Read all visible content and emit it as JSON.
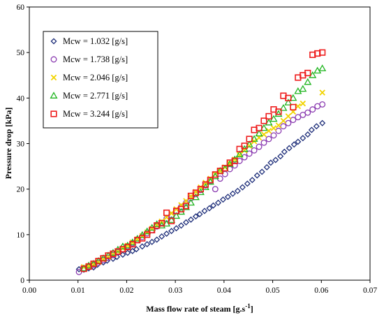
{
  "chart_data": {
    "type": "scatter",
    "title": "",
    "xlabel": "Mass flow rate of steam [g.s",
    "xlabel_sup": "-1",
    "xlabel_end": "]",
    "ylabel": "Pressure drop [kPa]",
    "xlim": [
      0,
      0.07
    ],
    "ylim": [
      0,
      60
    ],
    "x_ticks": [
      "0.00",
      "0.01",
      "0.02",
      "0.03",
      "0.04",
      "0.05",
      "0.06",
      "0.07"
    ],
    "y_ticks": [
      "0",
      "10",
      "20",
      "30",
      "40",
      "50",
      "60"
    ],
    "grid": false,
    "legend_position": "top-left",
    "series": [
      {
        "name": "Mcw = 1.032 [g/s]",
        "marker": "diamond",
        "color": "#1f2f7a",
        "points": [
          [
            0.0102,
            2.4
          ],
          [
            0.0112,
            2.3
          ],
          [
            0.0122,
            2.6
          ],
          [
            0.0132,
            2.8
          ],
          [
            0.014,
            3.4
          ],
          [
            0.0152,
            3.9
          ],
          [
            0.016,
            4.3
          ],
          [
            0.0172,
            4.7
          ],
          [
            0.018,
            5.1
          ],
          [
            0.0192,
            5.6
          ],
          [
            0.0202,
            6.0
          ],
          [
            0.0212,
            6.4
          ],
          [
            0.022,
            6.8
          ],
          [
            0.0232,
            7.4
          ],
          [
            0.0242,
            7.9
          ],
          [
            0.0252,
            8.4
          ],
          [
            0.0262,
            8.9
          ],
          [
            0.0272,
            9.6
          ],
          [
            0.0282,
            10.2
          ],
          [
            0.0292,
            10.8
          ],
          [
            0.0302,
            11.4
          ],
          [
            0.0312,
            12.0
          ],
          [
            0.0322,
            12.7
          ],
          [
            0.0332,
            13.3
          ],
          [
            0.0342,
            14.0
          ],
          [
            0.035,
            14.5
          ],
          [
            0.036,
            15.2
          ],
          [
            0.037,
            15.8
          ],
          [
            0.0378,
            16.4
          ],
          [
            0.0388,
            17.0
          ],
          [
            0.0398,
            17.7
          ],
          [
            0.0408,
            18.3
          ],
          [
            0.0418,
            19.0
          ],
          [
            0.0428,
            19.6
          ],
          [
            0.0438,
            20.4
          ],
          [
            0.0448,
            21.2
          ],
          [
            0.0458,
            22.0
          ],
          [
            0.0468,
            23.0
          ],
          [
            0.0478,
            23.8
          ],
          [
            0.0488,
            24.8
          ],
          [
            0.0496,
            25.8
          ],
          [
            0.0506,
            26.4
          ],
          [
            0.0516,
            27.2
          ],
          [
            0.0524,
            28.2
          ],
          [
            0.0534,
            29.0
          ],
          [
            0.0544,
            29.8
          ],
          [
            0.0552,
            30.4
          ],
          [
            0.0562,
            31.2
          ],
          [
            0.0572,
            32.0
          ],
          [
            0.058,
            33.0
          ],
          [
            0.059,
            33.8
          ],
          [
            0.0602,
            34.5
          ]
        ]
      },
      {
        "name": "Mcw = 1.738 [g/s]",
        "marker": "circle",
        "color": "#8a3ab0",
        "points": [
          [
            0.0102,
            1.8
          ],
          [
            0.0112,
            2.5
          ],
          [
            0.0122,
            2.9
          ],
          [
            0.0132,
            3.3
          ],
          [
            0.0142,
            3.8
          ],
          [
            0.0152,
            4.4
          ],
          [
            0.0162,
            4.9
          ],
          [
            0.0172,
            5.5
          ],
          [
            0.0182,
            6.1
          ],
          [
            0.0192,
            6.8
          ],
          [
            0.0202,
            7.4
          ],
          [
            0.0212,
            8.1
          ],
          [
            0.0222,
            8.8
          ],
          [
            0.0232,
            9.5
          ],
          [
            0.0242,
            10.3
          ],
          [
            0.0252,
            11.0
          ],
          [
            0.0262,
            11.8
          ],
          [
            0.0272,
            12.6
          ],
          [
            0.0282,
            13.5
          ],
          [
            0.0292,
            14.3
          ],
          [
            0.0302,
            15.2
          ],
          [
            0.0312,
            16.1
          ],
          [
            0.0322,
            17.0
          ],
          [
            0.0332,
            18.0
          ],
          [
            0.0342,
            18.9
          ],
          [
            0.0352,
            19.8
          ],
          [
            0.0362,
            20.8
          ],
          [
            0.0372,
            21.8
          ],
          [
            0.0382,
            20.0
          ],
          [
            0.0392,
            22.3
          ],
          [
            0.0402,
            23.3
          ],
          [
            0.0412,
            24.4
          ],
          [
            0.0422,
            25.2
          ],
          [
            0.0432,
            26.2
          ],
          [
            0.0442,
            27.0
          ],
          [
            0.0452,
            27.8
          ],
          [
            0.0462,
            28.5
          ],
          [
            0.0472,
            29.3
          ],
          [
            0.0482,
            30.2
          ],
          [
            0.0492,
            31.0
          ],
          [
            0.0502,
            31.8
          ],
          [
            0.0512,
            32.8
          ],
          [
            0.0522,
            33.8
          ],
          [
            0.0532,
            34.5
          ],
          [
            0.0542,
            35.2
          ],
          [
            0.0552,
            35.8
          ],
          [
            0.0562,
            36.3
          ],
          [
            0.0572,
            36.8
          ],
          [
            0.0582,
            37.5
          ],
          [
            0.0592,
            38.2
          ],
          [
            0.0602,
            38.6
          ]
        ]
      },
      {
        "name": "Mcw = 2.046 [g/s]",
        "marker": "cross",
        "color": "#f2d400",
        "points": [
          [
            0.0112,
            2.9
          ],
          [
            0.0122,
            3.1
          ],
          [
            0.0132,
            3.5
          ],
          [
            0.0142,
            4.0
          ],
          [
            0.0152,
            4.6
          ],
          [
            0.0162,
            5.1
          ],
          [
            0.0172,
            5.7
          ],
          [
            0.0182,
            6.3
          ],
          [
            0.0192,
            7.0
          ],
          [
            0.0202,
            7.6
          ],
          [
            0.0212,
            8.3
          ],
          [
            0.0222,
            9.0
          ],
          [
            0.0232,
            9.7
          ],
          [
            0.0242,
            10.5
          ],
          [
            0.0252,
            11.3
          ],
          [
            0.0262,
            12.1
          ],
          [
            0.0272,
            12.9
          ],
          [
            0.0282,
            13.8
          ],
          [
            0.0292,
            14.7
          ],
          [
            0.0302,
            15.6
          ],
          [
            0.0312,
            16.5
          ],
          [
            0.0322,
            17.4
          ],
          [
            0.0332,
            18.4
          ],
          [
            0.0342,
            19.4
          ],
          [
            0.0352,
            20.4
          ],
          [
            0.0362,
            21.4
          ],
          [
            0.0372,
            22.3
          ],
          [
            0.0382,
            23.3
          ],
          [
            0.0392,
            24.0
          ],
          [
            0.0402,
            24.8
          ],
          [
            0.0412,
            25.6
          ],
          [
            0.0422,
            26.5
          ],
          [
            0.0432,
            27.5
          ],
          [
            0.0442,
            28.5
          ],
          [
            0.0452,
            29.5
          ],
          [
            0.0462,
            30.5
          ],
          [
            0.0472,
            31.3
          ],
          [
            0.0482,
            32.0
          ],
          [
            0.0492,
            32.8
          ],
          [
            0.0502,
            33.4
          ],
          [
            0.0512,
            34.0
          ],
          [
            0.0522,
            35.0
          ],
          [
            0.0532,
            36.0
          ],
          [
            0.0542,
            37.0
          ],
          [
            0.0552,
            38.2
          ],
          [
            0.0562,
            38.8
          ],
          [
            0.0602,
            41.2
          ]
        ]
      },
      {
        "name": "Mcw = 2.771 [g/s]",
        "marker": "triangle",
        "color": "#1fb51f",
        "points": [
          [
            0.0112,
            2.6
          ],
          [
            0.0122,
            3.2
          ],
          [
            0.0132,
            3.6
          ],
          [
            0.0142,
            4.2
          ],
          [
            0.0152,
            4.8
          ],
          [
            0.0162,
            5.4
          ],
          [
            0.0172,
            6.0
          ],
          [
            0.0182,
            6.7
          ],
          [
            0.0192,
            7.4
          ],
          [
            0.0202,
            7.6
          ],
          [
            0.0212,
            8.3
          ],
          [
            0.0222,
            9.1
          ],
          [
            0.0232,
            9.9
          ],
          [
            0.0242,
            10.7
          ],
          [
            0.0252,
            11.5
          ],
          [
            0.0262,
            12.3
          ],
          [
            0.0272,
            12.0
          ],
          [
            0.0282,
            12.4
          ],
          [
            0.0292,
            13.2
          ],
          [
            0.0302,
            14.1
          ],
          [
            0.0312,
            15.0
          ],
          [
            0.0322,
            16.0
          ],
          [
            0.0332,
            17.0
          ],
          [
            0.0342,
            18.2
          ],
          [
            0.0352,
            19.3
          ],
          [
            0.0362,
            20.4
          ],
          [
            0.0372,
            21.6
          ],
          [
            0.0382,
            22.8
          ],
          [
            0.0392,
            24.0
          ],
          [
            0.0402,
            24.5
          ],
          [
            0.0412,
            25.5
          ],
          [
            0.0422,
            26.5
          ],
          [
            0.0432,
            27.6
          ],
          [
            0.0442,
            28.8
          ],
          [
            0.0452,
            29.8
          ],
          [
            0.0462,
            31.0
          ],
          [
            0.0472,
            32.2
          ],
          [
            0.0482,
            33.4
          ],
          [
            0.0492,
            34.6
          ],
          [
            0.0502,
            35.4
          ],
          [
            0.0512,
            36.5
          ],
          [
            0.0522,
            37.8
          ],
          [
            0.0532,
            39.0
          ],
          [
            0.0542,
            40.0
          ],
          [
            0.0552,
            41.5
          ],
          [
            0.0562,
            42.0
          ],
          [
            0.0572,
            43.5
          ],
          [
            0.0582,
            45.0
          ],
          [
            0.0592,
            46.0
          ],
          [
            0.0602,
            46.5
          ]
        ]
      },
      {
        "name": "Mcw = 3.244 [g/s]",
        "marker": "square",
        "color": "#ee1c1c",
        "points": [
          [
            0.0112,
            2.5
          ],
          [
            0.0122,
            3.0
          ],
          [
            0.0132,
            3.6
          ],
          [
            0.0142,
            4.2
          ],
          [
            0.0152,
            4.8
          ],
          [
            0.0162,
            5.4
          ],
          [
            0.0172,
            5.8
          ],
          [
            0.0182,
            6.3
          ],
          [
            0.0192,
            6.8
          ],
          [
            0.0202,
            7.3
          ],
          [
            0.0212,
            7.9
          ],
          [
            0.0222,
            8.8
          ],
          [
            0.0232,
            9.2
          ],
          [
            0.0242,
            10.0
          ],
          [
            0.0252,
            11.0
          ],
          [
            0.0262,
            12.0
          ],
          [
            0.0272,
            12.5
          ],
          [
            0.0282,
            14.8
          ],
          [
            0.0292,
            13.0
          ],
          [
            0.0302,
            15.2
          ],
          [
            0.0312,
            15.6
          ],
          [
            0.0322,
            16.3
          ],
          [
            0.0332,
            18.5
          ],
          [
            0.0342,
            19.2
          ],
          [
            0.0352,
            20.0
          ],
          [
            0.0362,
            21.0
          ],
          [
            0.0372,
            22.0
          ],
          [
            0.0382,
            23.2
          ],
          [
            0.0392,
            24.0
          ],
          [
            0.0402,
            24.6
          ],
          [
            0.0412,
            25.8
          ],
          [
            0.0422,
            26.2
          ],
          [
            0.0432,
            28.8
          ],
          [
            0.0442,
            29.5
          ],
          [
            0.0452,
            31.0
          ],
          [
            0.0462,
            33.0
          ],
          [
            0.0472,
            33.4
          ],
          [
            0.0482,
            35.0
          ],
          [
            0.0492,
            36.0
          ],
          [
            0.0502,
            37.5
          ],
          [
            0.0512,
            37.0
          ],
          [
            0.0522,
            40.5
          ],
          [
            0.0532,
            40.0
          ],
          [
            0.0542,
            38.0
          ],
          [
            0.0552,
            44.5
          ],
          [
            0.0562,
            45.0
          ],
          [
            0.0572,
            45.5
          ],
          [
            0.0582,
            49.5
          ],
          [
            0.0592,
            49.8
          ],
          [
            0.0602,
            50.0
          ]
        ]
      }
    ]
  }
}
